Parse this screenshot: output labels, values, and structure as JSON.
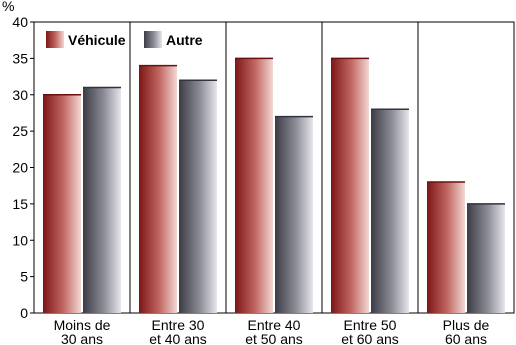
{
  "chart_data": {
    "type": "bar",
    "title": "",
    "ylabel": "%",
    "xlabel": "",
    "ylim": [
      0,
      40
    ],
    "yticks": [
      0,
      5,
      10,
      15,
      20,
      25,
      30,
      35,
      40
    ],
    "grid": true,
    "legend_position": "top-left",
    "categories": [
      [
        "Moins de",
        "30 ans"
      ],
      [
        "Entre 30",
        "et 40 ans"
      ],
      [
        "Entre 40",
        "et 50 ans"
      ],
      [
        "Entre 50",
        "et 60 ans"
      ],
      [
        "Plus de",
        "60 ans"
      ]
    ],
    "series": [
      {
        "name": "Véhicule",
        "values": [
          30,
          34,
          35,
          35,
          18
        ],
        "color": "#8b1a1a"
      },
      {
        "name": "Autre",
        "values": [
          31,
          32,
          27,
          28,
          15
        ],
        "color": "#4a4a55"
      }
    ]
  }
}
